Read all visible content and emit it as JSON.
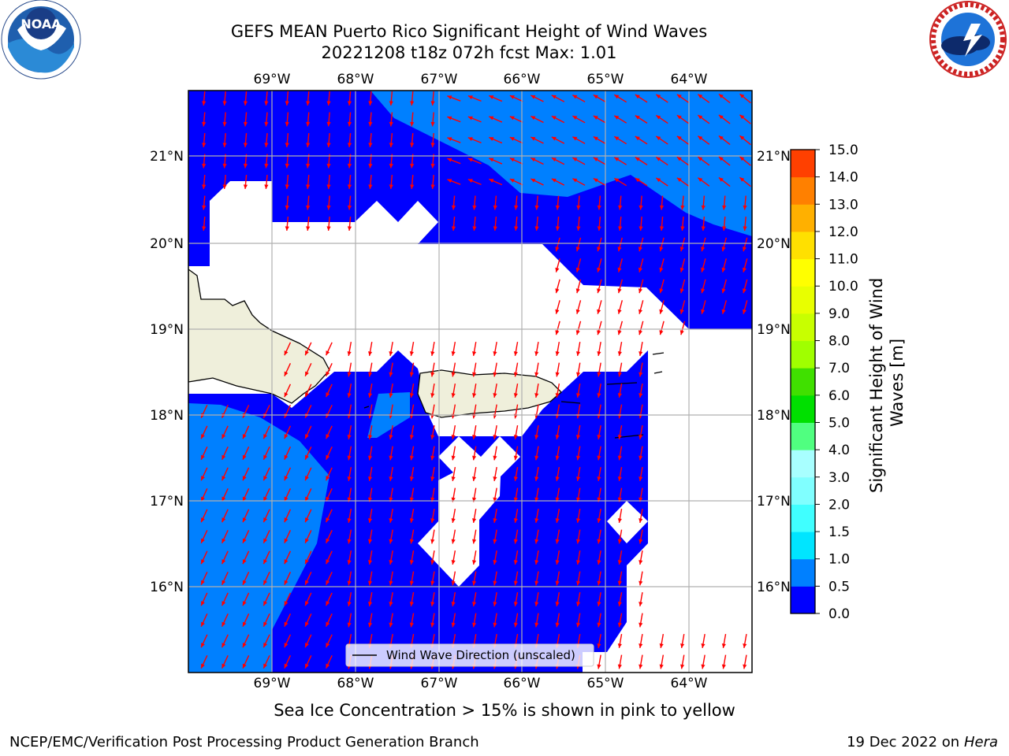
{
  "header": {
    "title_line1": "GEFS MEAN Puerto Rico Significant Height of Wind Waves",
    "title_line2": "20221208 t18z 072h fcst   Max: 1.01"
  },
  "logos": {
    "left": {
      "icon": "noaa-logo-icon",
      "wordmark": "NOAA"
    },
    "right": {
      "icon": "nws-logo-icon"
    }
  },
  "map": {
    "lon_labels": [
      "69°W",
      "68°W",
      "67°W",
      "66°W",
      "65°W",
      "64°W"
    ],
    "lat_labels": [
      "21°N",
      "20°N",
      "19°N",
      "18°N",
      "17°N",
      "16°N"
    ],
    "lon_range": [
      -70.0,
      -63.25
    ],
    "lat_range": [
      15.0,
      21.75
    ],
    "ocean_color": "#0000ff",
    "light_color": "#0080ff",
    "land_color": "#efefdb",
    "arrow_color": "#ff0000",
    "legend_text": "Wind Wave Direction (unscaled)"
  },
  "colorbar": {
    "label": "Significant Height of Wind Waves [m]",
    "ticks": [
      "0.0",
      "0.5",
      "1.0",
      "1.5",
      "2.0",
      "3.0",
      "4.0",
      "5.0",
      "6.0",
      "7.0",
      "8.0",
      "9.0",
      "10.0",
      "11.0",
      "12.0",
      "13.0",
      "14.0",
      "15.0"
    ],
    "colors": [
      "#0000ff",
      "#0080ff",
      "#00e5ff",
      "#40ffff",
      "#80ffff",
      "#a8ffff",
      "#50ff80",
      "#00e000",
      "#40e000",
      "#a0ff00",
      "#c8ff00",
      "#e8ff00",
      "#ffff00",
      "#ffe000",
      "#ffb000",
      "#ff8000",
      "#ff4000",
      "#ff0000"
    ]
  },
  "footer": {
    "subtitle": "Sea Ice Concentration > 15% is shown in pink to yellow",
    "left": "NCEP/EMC/Verification Post Processing Product Generation Branch",
    "right_date": "19 Dec 2022 on",
    "right_host": "Hera"
  }
}
